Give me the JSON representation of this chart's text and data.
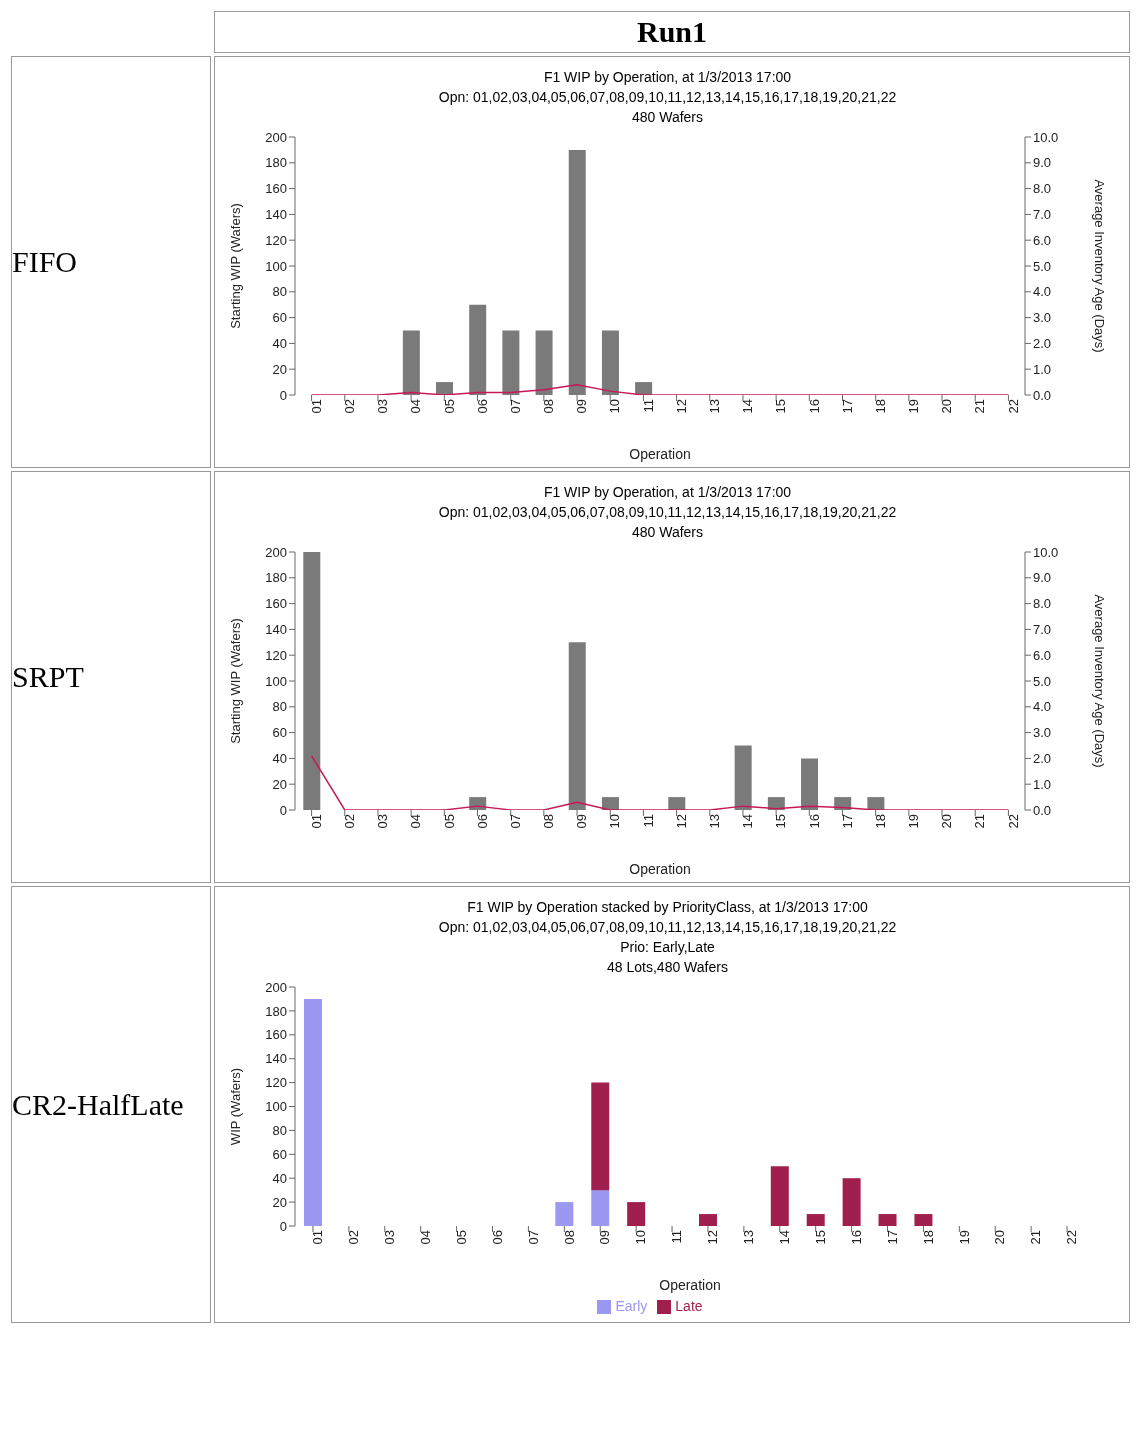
{
  "chart_data": [
    {
      "type": "bar",
      "title": "F1 WIP by Operation, at 1/3/2013 17:00",
      "subtitle": "Opn: 01,02,03,04,05,06,07,08,09,10,11,12,13,14,15,16,17,18,19,20,21,22\n480 Wafers",
      "xlabel": "Operation",
      "ylabel": "Starting WIP (Wafers)",
      "y2label": "Average Inventory Age (Days)",
      "annotations": [
        "Run1",
        "FIFO"
      ],
      "categories": [
        "01",
        "02",
        "03",
        "04",
        "05",
        "06",
        "07",
        "08",
        "09",
        "10",
        "11",
        "12",
        "13",
        "14",
        "15",
        "16",
        "17",
        "18",
        "19",
        "20",
        "21",
        "22"
      ],
      "series": [
        {
          "type": "bar",
          "color": "#7a7a7a",
          "values": [
            0,
            0,
            0,
            50,
            10,
            70,
            50,
            50,
            190,
            50,
            10,
            0,
            0,
            0,
            0,
            0,
            0,
            0,
            0,
            0,
            0,
            0
          ]
        },
        {
          "type": "line",
          "axis": "y2",
          "color": "#c8185a",
          "values": [
            0,
            0,
            0,
            0.1,
            0,
            0.1,
            0.1,
            0.2,
            0.4,
            0.15,
            0,
            0,
            0,
            0,
            0,
            0,
            0,
            0,
            0,
            0,
            0,
            0
          ]
        }
      ],
      "ylim": [
        0,
        200
      ],
      "yticks": [
        0,
        20,
        40,
        60,
        80,
        100,
        120,
        140,
        160,
        180,
        200
      ],
      "y2lim": [
        0,
        10
      ],
      "y2ticks": [
        {
          "value": 0,
          "label": "0.0"
        },
        {
          "value": 1,
          "label": "1.0"
        },
        {
          "value": 2,
          "label": "2.0"
        },
        {
          "value": 3,
          "label": "3.0"
        },
        {
          "value": 4,
          "label": "4.0"
        },
        {
          "value": 5,
          "label": "5.0"
        },
        {
          "value": 6,
          "label": "6.0"
        },
        {
          "value": 7,
          "label": "7.0"
        },
        {
          "value": 8,
          "label": "8.0"
        },
        {
          "value": 9,
          "label": "9.0"
        },
        {
          "value": 10,
          "label": "10.0"
        }
      ]
    },
    {
      "type": "bar",
      "title": "F1 WIP by Operation, at 1/3/2013 17:00",
      "subtitle": "Opn: 01,02,03,04,05,06,07,08,09,10,11,12,13,14,15,16,17,18,19,20,21,22\n480 Wafers",
      "xlabel": "Operation",
      "ylabel": "Starting WIP (Wafers)",
      "y2label": "Average Inventory Age (Days)",
      "annotations": [
        "SRPT"
      ],
      "categories": [
        "01",
        "02",
        "03",
        "04",
        "05",
        "06",
        "07",
        "08",
        "09",
        "10",
        "11",
        "12",
        "13",
        "14",
        "15",
        "16",
        "17",
        "18",
        "19",
        "20",
        "21",
        "22"
      ],
      "series": [
        {
          "type": "bar",
          "color": "#7a7a7a",
          "values": [
            200,
            0,
            0,
            0,
            0,
            10,
            0,
            0,
            130,
            10,
            0,
            10,
            0,
            50,
            10,
            40,
            10,
            10,
            0,
            0,
            0,
            0
          ]
        },
        {
          "type": "line",
          "axis": "y2",
          "color": "#c8185a",
          "values": [
            2.1,
            0,
            0,
            0,
            0,
            0.15,
            0,
            0,
            0.3,
            0,
            0,
            0,
            0,
            0.15,
            0.05,
            0.15,
            0.1,
            0,
            0,
            0,
            0,
            0
          ]
        }
      ],
      "ylim": [
        0,
        200
      ],
      "yticks": [
        0,
        20,
        40,
        60,
        80,
        100,
        120,
        140,
        160,
        180,
        200
      ],
      "y2lim": [
        0,
        10
      ],
      "y2ticks": [
        {
          "value": 0,
          "label": "0.0"
        },
        {
          "value": 1,
          "label": "1.0"
        },
        {
          "value": 2,
          "label": "2.0"
        },
        {
          "value": 3,
          "label": "3.0"
        },
        {
          "value": 4,
          "label": "4.0"
        },
        {
          "value": 5,
          "label": "5.0"
        },
        {
          "value": 6,
          "label": "6.0"
        },
        {
          "value": 7,
          "label": "7.0"
        },
        {
          "value": 8,
          "label": "8.0"
        },
        {
          "value": 9,
          "label": "9.0"
        },
        {
          "value": 10,
          "label": "10.0"
        }
      ]
    },
    {
      "type": "bar",
      "stacked": true,
      "title": "F1 WIP by Operation stacked by PriorityClass, at 1/3/2013 17:00",
      "subtitle": "Opn: 01,02,03,04,05,06,07,08,09,10,11,12,13,14,15,16,17,18,19,20,21,22\nPrio: Early,Late\n48 Lots,480 Wafers",
      "xlabel": "Operation",
      "ylabel": "WIP (Wafers)",
      "annotations": [
        "CR2-HalfLate"
      ],
      "legend": "bottom",
      "categories": [
        "01",
        "02",
        "03",
        "04",
        "05",
        "06",
        "07",
        "08",
        "09",
        "10",
        "11",
        "12",
        "13",
        "14",
        "15",
        "16",
        "17",
        "18",
        "19",
        "20",
        "21",
        "22"
      ],
      "series": [
        {
          "name": "Early",
          "color": "#9a98f0",
          "values": [
            190,
            0,
            0,
            0,
            0,
            0,
            0,
            20,
            30,
            0,
            0,
            0,
            0,
            0,
            0,
            0,
            0,
            0,
            0,
            0,
            0,
            0
          ]
        },
        {
          "name": "Late",
          "color": "#a11f4f",
          "values": [
            0,
            0,
            0,
            0,
            0,
            0,
            0,
            0,
            90,
            20,
            0,
            10,
            0,
            50,
            10,
            40,
            10,
            10,
            0,
            0,
            0,
            0
          ]
        }
      ],
      "ylim": [
        0,
        200
      ],
      "yticks": [
        0,
        20,
        40,
        60,
        80,
        100,
        120,
        140,
        160,
        180,
        200
      ]
    }
  ]
}
